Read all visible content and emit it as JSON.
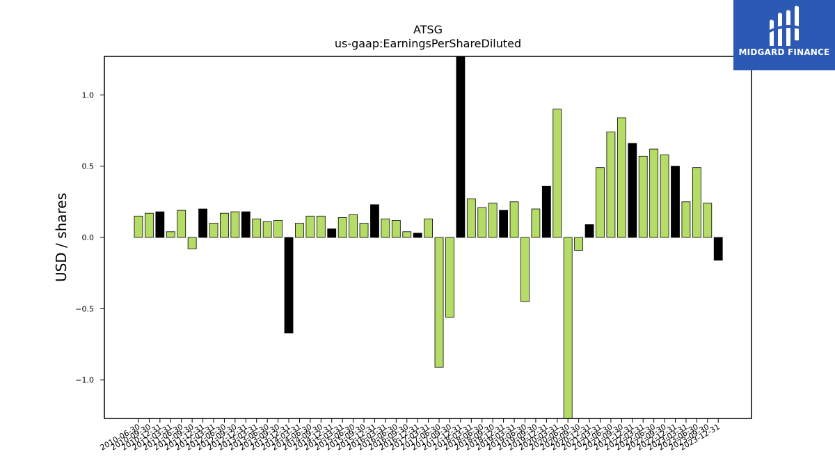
{
  "logo": {
    "text": "MIDGARD FINANCE"
  },
  "chart_data": {
    "type": "bar",
    "title": "ATSG",
    "subtitle": "us-gaap:EarningsPerShareDiluted",
    "ylabel": "USD / shares",
    "xlabel": "",
    "ylim": [
      -1.27,
      1.27
    ],
    "yticks": [
      -1.0,
      -0.5,
      0.0,
      0.5,
      1.0
    ],
    "ytick_labels": [
      "−1.0",
      "−0.5",
      "0.0",
      "0.5",
      "1.0"
    ],
    "colors": {
      "quarter": "#b5dc67",
      "annual": "#000000",
      "edge": "#000000"
    },
    "categories": [
      "2010-06-30",
      "2010-09-30",
      "2010-12-31",
      "2011-03-31",
      "2011-06-30",
      "2011-09-30",
      "2011-12-31",
      "2012-03-31",
      "2012-06-30",
      "2012-09-30",
      "2012-12-31",
      "2013-03-31",
      "2013-06-30",
      "2013-09-30",
      "2013-12-31",
      "2014-03-31",
      "2014-06-30",
      "2014-09-30",
      "2014-12-31",
      "2015-03-31",
      "2015-06-30",
      "2015-09-30",
      "2015-12-31",
      "2016-03-31",
      "2016-06-30",
      "2016-09-30",
      "2016-12-31",
      "2017-03-31",
      "2017-06-30",
      "2017-09-30",
      "2017-12-31",
      "2018-03-31",
      "2018-06-30",
      "2018-09-30",
      "2018-12-31",
      "2019-03-31",
      "2019-06-30",
      "2019-09-30",
      "2019-12-31",
      "2020-03-31",
      "2020-06-30",
      "2020-09-30",
      "2020-12-31",
      "2021-03-31",
      "2021-06-30",
      "2021-09-30",
      "2021-12-31",
      "2022-03-31",
      "2022-06-30",
      "2022-09-30",
      "2022-12-31",
      "2023-03-31",
      "2023-06-30",
      "2023-09-30",
      "2023-12-31"
    ],
    "values": [
      0.15,
      0.17,
      0.18,
      0.04,
      0.19,
      -0.08,
      0.2,
      0.1,
      0.17,
      0.18,
      0.18,
      0.13,
      0.11,
      0.12,
      -0.67,
      0.1,
      0.15,
      0.15,
      0.06,
      0.14,
      0.16,
      0.1,
      0.23,
      0.13,
      0.12,
      0.04,
      0.03,
      0.13,
      -0.91,
      -0.56,
      1.27,
      0.27,
      0.21,
      0.24,
      0.19,
      0.25,
      -0.45,
      0.2,
      0.36,
      0.9,
      -1.27,
      -0.09,
      0.09,
      0.49,
      0.74,
      0.84,
      0.66,
      0.57,
      0.62,
      0.58,
      0.5,
      0.25,
      0.49,
      0.24,
      -0.16
    ],
    "is_annual": [
      false,
      false,
      true,
      false,
      false,
      false,
      true,
      false,
      false,
      false,
      true,
      false,
      false,
      false,
      true,
      false,
      false,
      false,
      true,
      false,
      false,
      false,
      true,
      false,
      false,
      false,
      true,
      false,
      false,
      false,
      true,
      false,
      false,
      false,
      true,
      false,
      false,
      false,
      true,
      false,
      false,
      false,
      true,
      false,
      false,
      false,
      true,
      false,
      false,
      false,
      true,
      false,
      false,
      false,
      true
    ]
  }
}
